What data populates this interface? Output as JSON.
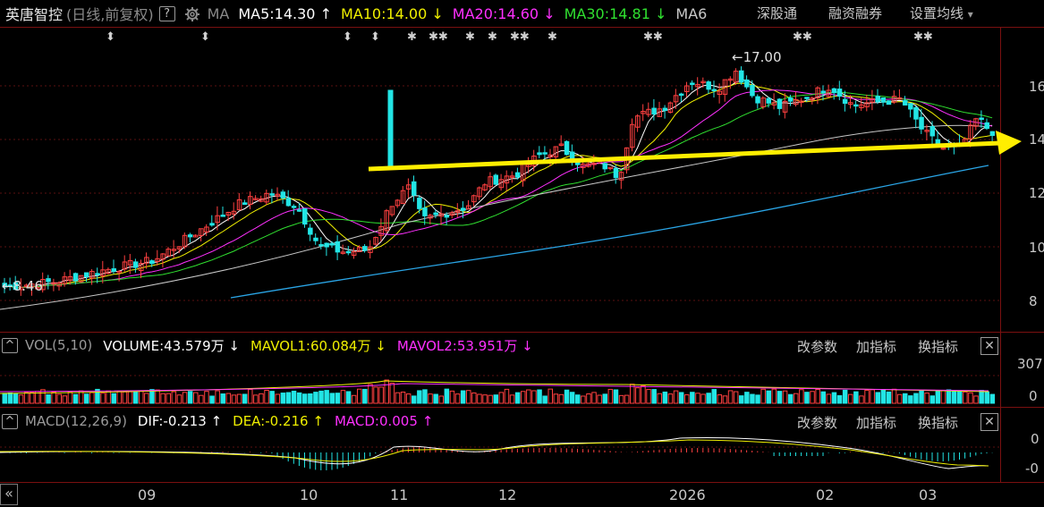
{
  "header": {
    "stock_name": "英唐智控",
    "period_mode": "(日线,前复权)",
    "help_glyph": "?",
    "settings_icon": "gear-icon",
    "ma_label": "MA",
    "ma5": "MA5:14.30",
    "ma10": "MA10:14.00",
    "ma20": "MA20:14.60",
    "ma30": "MA30:14.81",
    "ma60": "MA6",
    "ma5_arrow": "↑",
    "ma10_arrow": "↓",
    "ma20_arrow": "↓",
    "ma30_arrow": "↓",
    "btn_shenzhen": "深股通",
    "btn_margin": "融资融券",
    "btn_settings": "设置均线",
    "dropdown_glyph": "▾"
  },
  "main_chart": {
    "y_ticks": [
      "16",
      "14",
      "12",
      "10",
      "8"
    ],
    "high_annotation": "17.00",
    "low_annotation": "8.46",
    "event_markers": [
      "⬍",
      "⬍",
      "⬍",
      "⬍",
      "✱",
      "✱✱",
      "✱",
      "✱",
      "✱✱",
      "✱",
      "✱✱",
      "✱✱",
      "✱✱"
    ]
  },
  "volume_panel": {
    "collapse_glyph": "^",
    "label": "VOL(5,10)",
    "volume": "VOLUME:43.579万",
    "volume_arrow": "↓",
    "mavol1": "MAVOL1:60.084万",
    "mavol1_arrow": "↓",
    "mavol2": "MAVOL2:53.951万",
    "mavol2_arrow": "↓",
    "y_top": "307",
    "y_bottom": "0",
    "btn_params": "改参数",
    "btn_add": "加指标",
    "btn_switch": "换指标",
    "close_glyph": "✕"
  },
  "macd_panel": {
    "collapse_glyph": "^",
    "label": "MACD(12,26,9)",
    "dif": "DIF:-0.213",
    "dif_arrow": "↑",
    "dea": "DEA:-0.216",
    "dea_arrow": "↑",
    "macd": "MACD:0.005",
    "macd_arrow": "↑",
    "y_top": "0",
    "y_bottom": "-0",
    "btn_params": "改参数",
    "btn_add": "加指标",
    "btn_switch": "换指标",
    "close_glyph": "✕"
  },
  "x_axis": {
    "scroll_glyph": "«",
    "labels": [
      "09",
      "10",
      "11",
      "12",
      "2026",
      "02",
      "03"
    ]
  },
  "colors": {
    "up": "#ff4040",
    "down": "#22e5e5",
    "ma5": "#ffffff",
    "ma10": "#f0f000",
    "ma20": "#ff30ff",
    "ma30": "#30e030",
    "ma60": "#c8c8c8",
    "ma120": "#2aa5e6",
    "trend_arrow": "#ffee00"
  }
}
